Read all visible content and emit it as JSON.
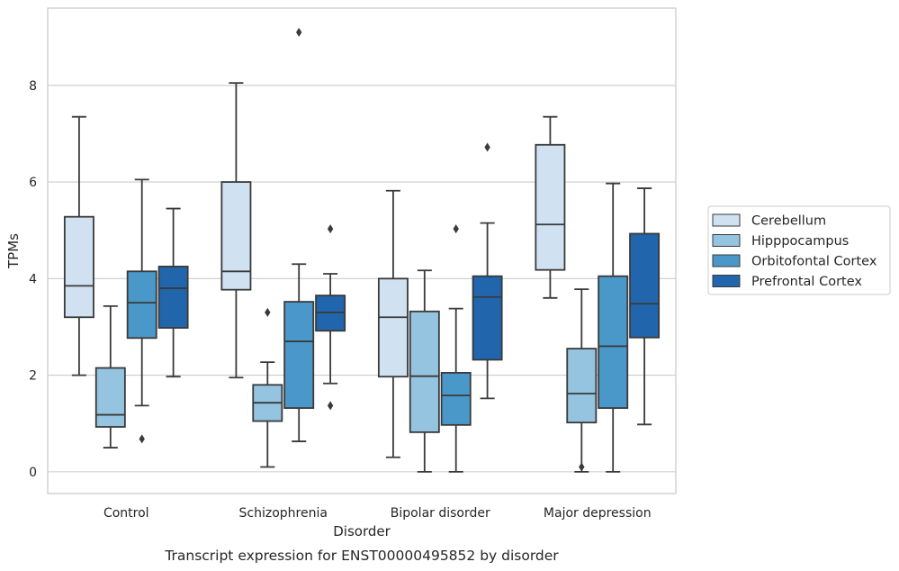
{
  "caption": "Transcript expression for ENST00000495852 by disorder",
  "chart_data": {
    "type": "boxplot",
    "xlabel": "Disorder",
    "ylabel": "TPMs",
    "ylim": [
      -0.45,
      9.6
    ],
    "yticks": [
      0,
      2,
      4,
      6,
      8
    ],
    "grid": "horizontal",
    "legend_position": "right",
    "categories": [
      "Control",
      "Schizophrenia",
      "Bipolar disorder",
      "Major depression"
    ],
    "series": [
      {
        "name": "Cerebellum",
        "color": "#d0e1f2",
        "boxes": [
          {
            "whisker_low": 2.0,
            "q1": 3.2,
            "median": 3.85,
            "q3": 5.28,
            "whisker_high": 7.35,
            "outliers": []
          },
          {
            "whisker_low": 1.95,
            "q1": 3.77,
            "median": 4.15,
            "q3": 6.0,
            "whisker_high": 8.05,
            "outliers": []
          },
          {
            "whisker_low": 0.3,
            "q1": 1.97,
            "median": 3.2,
            "q3": 4.0,
            "whisker_high": 5.82,
            "outliers": []
          },
          {
            "whisker_low": 3.6,
            "q1": 4.18,
            "median": 5.12,
            "q3": 6.77,
            "whisker_high": 7.35,
            "outliers": []
          }
        ]
      },
      {
        "name": "Hipppocampus",
        "color": "#94c4df",
        "boxes": [
          {
            "whisker_low": 0.5,
            "q1": 0.93,
            "median": 1.18,
            "q3": 2.15,
            "whisker_high": 3.43,
            "outliers": []
          },
          {
            "whisker_low": 0.1,
            "q1": 1.05,
            "median": 1.43,
            "q3": 1.8,
            "whisker_high": 2.27,
            "outliers": [
              3.3
            ]
          },
          {
            "whisker_low": 0.0,
            "q1": 0.82,
            "median": 1.98,
            "q3": 3.32,
            "whisker_high": 4.17,
            "outliers": []
          },
          {
            "whisker_low": 0.0,
            "q1": 1.02,
            "median": 1.62,
            "q3": 2.55,
            "whisker_high": 3.78,
            "outliers": [
              0.1
            ]
          }
        ]
      },
      {
        "name": "Orbitofontal Cortex",
        "color": "#4a98c9",
        "boxes": [
          {
            "whisker_low": 1.37,
            "q1": 2.77,
            "median": 3.5,
            "q3": 4.15,
            "whisker_high": 6.05,
            "outliers": [
              0.68
            ]
          },
          {
            "whisker_low": 0.63,
            "q1": 1.32,
            "median": 2.7,
            "q3": 3.52,
            "whisker_high": 4.3,
            "outliers": [
              9.1
            ]
          },
          {
            "whisker_low": 0.0,
            "q1": 0.97,
            "median": 1.58,
            "q3": 2.05,
            "whisker_high": 3.38,
            "outliers": [
              5.03
            ]
          },
          {
            "whisker_low": 0.0,
            "q1": 1.32,
            "median": 2.6,
            "q3": 4.05,
            "whisker_high": 5.97,
            "outliers": []
          }
        ]
      },
      {
        "name": "Prefrontal Cortex",
        "color": "#2166ac",
        "boxes": [
          {
            "whisker_low": 1.97,
            "q1": 2.98,
            "median": 3.8,
            "q3": 4.25,
            "whisker_high": 5.45,
            "outliers": []
          },
          {
            "whisker_low": 1.83,
            "q1": 2.92,
            "median": 3.3,
            "q3": 3.65,
            "whisker_high": 4.1,
            "outliers": [
              5.03,
              1.37
            ]
          },
          {
            "whisker_low": 1.52,
            "q1": 2.32,
            "median": 3.62,
            "q3": 4.05,
            "whisker_high": 5.15,
            "outliers": [
              6.72
            ]
          },
          {
            "whisker_low": 0.98,
            "q1": 2.78,
            "median": 3.48,
            "q3": 4.93,
            "whisker_high": 5.87,
            "outliers": []
          }
        ]
      }
    ]
  }
}
